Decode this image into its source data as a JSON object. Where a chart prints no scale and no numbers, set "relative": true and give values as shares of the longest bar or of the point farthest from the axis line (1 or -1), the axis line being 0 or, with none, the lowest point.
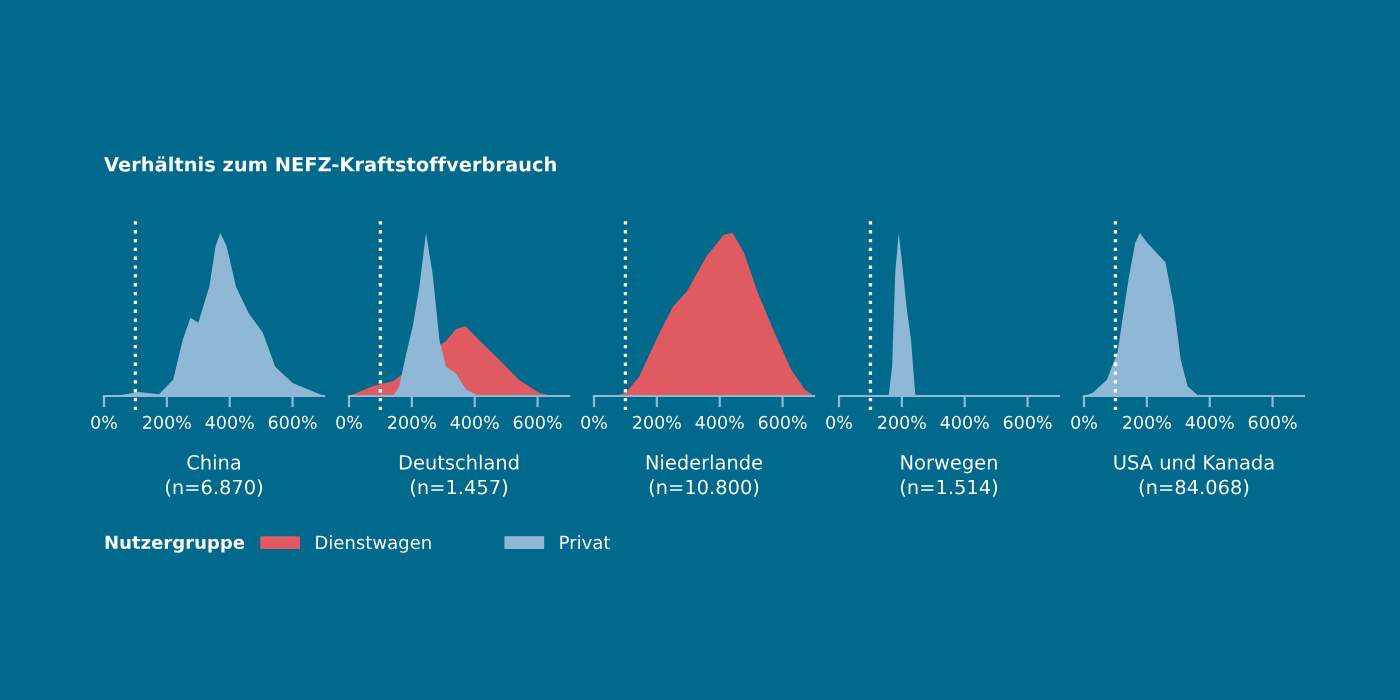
{
  "chart_data": [
    {
      "type": "area",
      "title": "Verhältnis zum NEFZ-Kraftstoffverbrauch",
      "xlabel": "China\n(n=6.870)",
      "relative": true,
      "xlim": [
        0,
        700
      ],
      "xticks": [
        {
          "value": 0,
          "label": "0%"
        },
        {
          "value": 200,
          "label": "200%"
        },
        {
          "value": 400,
          "label": "400%"
        },
        {
          "value": 600,
          "label": "600%"
        }
      ],
      "ref_lines": [
        {
          "axis": "x",
          "value": 100,
          "color": "#ffffff",
          "line_style": "dotted"
        }
      ],
      "series": [
        {
          "color": "#8fb8d6",
          "x": [
            0,
            50,
            110,
            175,
            220,
            250,
            275,
            300,
            335,
            355,
            370,
            390,
            420,
            460,
            505,
            545,
            600,
            700
          ],
          "values": [
            0,
            0.004,
            0.025,
            0.01,
            0.1,
            0.34,
            0.48,
            0.45,
            0.67,
            0.92,
            1,
            0.92,
            0.67,
            0.51,
            0.39,
            0.18,
            0.08,
            0
          ]
        }
      ]
    },
    {
      "type": "area",
      "xlabel": "Deutschland\n(n=1.457)",
      "relative": true,
      "legend": "bottom left",
      "legend_title": "Nutzergruppe",
      "xlim": [
        0,
        700
      ],
      "xticks": [
        {
          "value": 0,
          "label": "0%"
        },
        {
          "value": 200,
          "label": "200%"
        },
        {
          "value": 400,
          "label": "400%"
        },
        {
          "value": 600,
          "label": "600%"
        }
      ],
      "ref_lines": [
        {
          "axis": "x",
          "value": 100,
          "color": "#ffffff",
          "line_style": "dotted"
        }
      ],
      "series": [
        {
          "name": "Dienstwagen",
          "color": "#e05a61",
          "x": [
            0,
            75,
            140,
            310,
            340,
            370,
            415,
            480,
            540,
            605,
            650,
            700
          ],
          "values": [
            0,
            0.06,
            0.09,
            0.34,
            0.41,
            0.43,
            0.34,
            0.22,
            0.1,
            0.02,
            0,
            0
          ]
        },
        {
          "name": "Privat",
          "color": "#8fb8d6",
          "x": [
            0,
            140,
            160,
            182,
            203,
            224,
            245,
            266,
            288,
            309,
            340,
            372,
            414,
            700
          ],
          "values": [
            0,
            0,
            0.06,
            0.26,
            0.43,
            0.67,
            1,
            0.75,
            0.34,
            0.18,
            0.14,
            0.04,
            0,
            0
          ]
        }
      ]
    },
    {
      "type": "area",
      "xlabel": "Niederlande\n(n=10.800)",
      "relative": true,
      "xlim": [
        0,
        700
      ],
      "xticks": [
        {
          "value": 0,
          "label": "0%"
        },
        {
          "value": 200,
          "label": "200%"
        },
        {
          "value": 400,
          "label": "400%"
        },
        {
          "value": 600,
          "label": "600%"
        }
      ],
      "ref_lines": [
        {
          "axis": "x",
          "value": 100,
          "color": "#ffffff",
          "line_style": "dotted"
        }
      ],
      "series": [
        {
          "color": "#e05a61",
          "x": [
            0,
            69,
            101,
            144,
            209,
            252,
            295,
            359,
            413,
            441,
            477,
            520,
            574,
            628,
            671,
            700
          ],
          "values": [
            0,
            0,
            0.02,
            0.12,
            0.39,
            0.55,
            0.64,
            0.86,
            0.99,
            1,
            0.88,
            0.64,
            0.39,
            0.16,
            0.04,
            0
          ]
        }
      ]
    },
    {
      "type": "area",
      "xlabel": "Norwegen\n(n=1.514)",
      "relative": true,
      "xlim": [
        0,
        700
      ],
      "xticks": [
        {
          "value": 0,
          "label": "0%"
        },
        {
          "value": 200,
          "label": "200%"
        },
        {
          "value": 400,
          "label": "400%"
        },
        {
          "value": 600,
          "label": "600%"
        }
      ],
      "ref_lines": [
        {
          "axis": "x",
          "value": 100,
          "color": "#ffffff",
          "line_style": "dotted"
        }
      ],
      "series": [
        {
          "color": "#8fb8d6",
          "x": [
            0,
            158,
            169,
            179,
            190,
            200,
            216,
            229,
            243,
            700
          ],
          "values": [
            0,
            0,
            0.18,
            0.76,
            1,
            0.83,
            0.53,
            0.35,
            0,
            0
          ]
        }
      ]
    },
    {
      "type": "area",
      "xlabel": "USA und Kanada\n(n=84.068)",
      "relative": true,
      "xlim": [
        0,
        700
      ],
      "xticks": [
        {
          "value": 0,
          "label": "0%"
        },
        {
          "value": 200,
          "label": "200%"
        },
        {
          "value": 400,
          "label": "400%"
        },
        {
          "value": 600,
          "label": "600%"
        }
      ],
      "ref_lines": [
        {
          "axis": "x",
          "value": 100,
          "color": "#ffffff",
          "line_style": "dotted"
        }
      ],
      "series": [
        {
          "color": "#8fb8d6",
          "x": [
            0,
            28,
            73,
            107,
            141,
            163,
            178,
            201,
            230,
            259,
            286,
            308,
            330,
            364,
            700
          ],
          "values": [
            0,
            0.02,
            0.1,
            0.27,
            0.71,
            0.94,
            1,
            0.94,
            0.88,
            0.82,
            0.55,
            0.22,
            0.06,
            0,
            0
          ]
        }
      ]
    }
  ]
}
